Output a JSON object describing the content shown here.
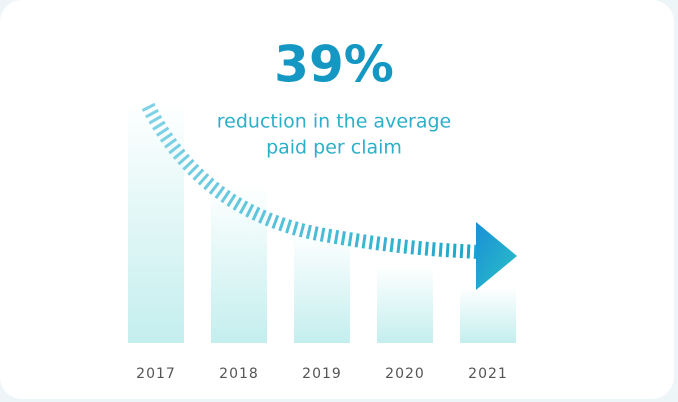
{
  "chart_data": {
    "type": "bar",
    "title": "39%",
    "subtitle": [
      "reduction in the average",
      "paid per claim"
    ],
    "categories": [
      "2017",
      "2018",
      "2019",
      "2020",
      "2021"
    ],
    "values": [
      243,
      158,
      111,
      78,
      56
    ],
    "color": "#c4eeee",
    "ylim": [
      0,
      243
    ]
  }
}
